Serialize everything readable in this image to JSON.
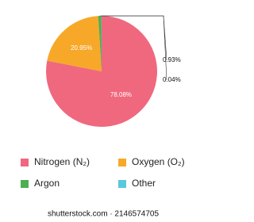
{
  "chart_data": {
    "type": "pie",
    "categories": [
      "Nitrogen (N₂)",
      "Oxygen (O₂)",
      "Argon",
      "Other"
    ],
    "values": [
      78.08,
      20.95,
      0.93,
      0.04
    ],
    "value_labels": [
      "78.08%",
      "20.95%",
      "0.93%",
      "0.04%"
    ],
    "colors": [
      "#f0687e",
      "#f7a829",
      "#4caf50",
      "#5bc8dc"
    ]
  },
  "watermark": "shutterstock.com · 2146574705"
}
